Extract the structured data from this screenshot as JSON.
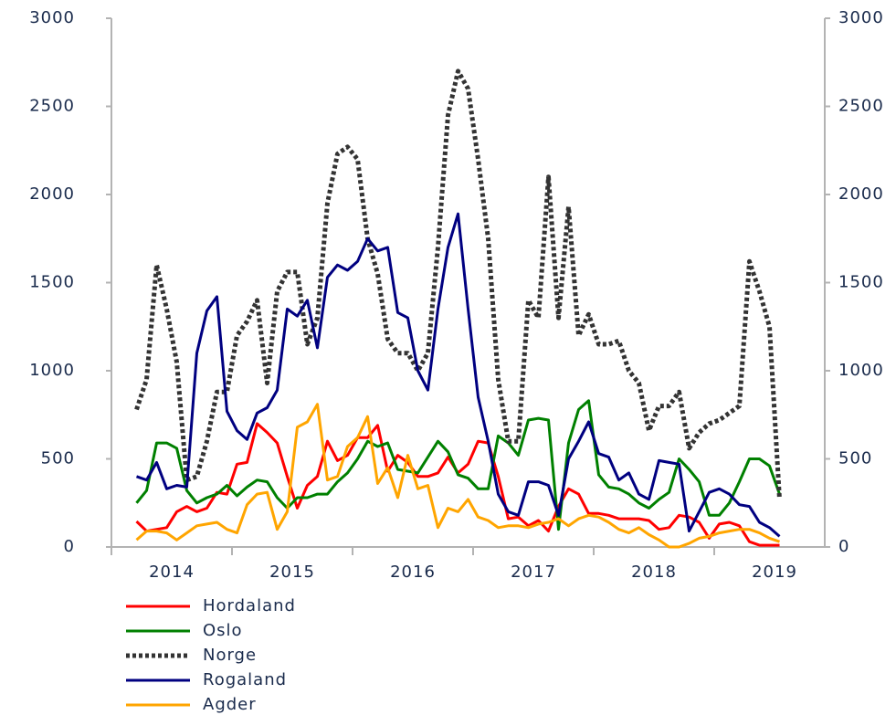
{
  "chart_data": {
    "type": "line",
    "categories": [
      null,
      null,
      null,
      null,
      "2014",
      null,
      null,
      null,
      null,
      null,
      null,
      null,
      null,
      null,
      null,
      null,
      "2015",
      null,
      null,
      null,
      null,
      null,
      null,
      null,
      null,
      null,
      null,
      null,
      "2016",
      null,
      null,
      null,
      null,
      null,
      null,
      null,
      null,
      null,
      null,
      null,
      "2017",
      null,
      null,
      null,
      null,
      null,
      null,
      null,
      null,
      null,
      null,
      null,
      "2018",
      null,
      null,
      null,
      null,
      null,
      null,
      null,
      null,
      null,
      null,
      null,
      "2019"
    ],
    "series": [
      {
        "name": "Hordaland",
        "color": "#ff0000",
        "style": "solid",
        "values": [
          145,
          90,
          100,
          110,
          200,
          230,
          200,
          220,
          310,
          300,
          470,
          480,
          700,
          650,
          590,
          400,
          220,
          350,
          400,
          600,
          490,
          520,
          620,
          620,
          690,
          430,
          520,
          480,
          400,
          400,
          420,
          510,
          420,
          470,
          600,
          590,
          400,
          160,
          170,
          120,
          150,
          90,
          230,
          330,
          300,
          190,
          190,
          180,
          160,
          160,
          160,
          150,
          100,
          110,
          180,
          170,
          140,
          50,
          130,
          140,
          120,
          30,
          10,
          10,
          10
        ]
      },
      {
        "name": "Oslo",
        "color": "#008000",
        "style": "solid",
        "values": [
          250,
          320,
          590,
          590,
          560,
          320,
          250,
          280,
          300,
          350,
          290,
          340,
          380,
          370,
          280,
          220,
          280,
          280,
          300,
          300,
          370,
          420,
          500,
          600,
          570,
          590,
          440,
          430,
          420,
          510,
          600,
          540,
          410,
          390,
          330,
          330,
          630,
          590,
          520,
          720,
          730,
          720,
          100,
          590,
          780,
          830,
          410,
          340,
          330,
          300,
          250,
          220,
          270,
          310,
          500,
          440,
          370,
          180,
          180,
          250,
          370,
          500,
          500,
          460,
          300
        ]
      },
      {
        "name": "Norge",
        "color": "#333333",
        "style": "dotted",
        "values": [
          780,
          950,
          1600,
          1350,
          1050,
          380,
          400,
          600,
          880,
          880,
          1200,
          1280,
          1400,
          930,
          1450,
          1560,
          1560,
          1150,
          1300,
          1950,
          2230,
          2270,
          2200,
          1750,
          1550,
          1180,
          1100,
          1100,
          1000,
          1100,
          1700,
          2450,
          2700,
          2600,
          2200,
          1750,
          950,
          600,
          600,
          1400,
          1300,
          2100,
          1300,
          1930,
          1200,
          1320,
          1150,
          1150,
          1170,
          1000,
          930,
          660,
          800,
          800,
          880,
          560,
          650,
          700,
          720,
          760,
          800,
          1620,
          1450,
          1250,
          270
        ]
      },
      {
        "name": "Rogaland",
        "color": "#000080",
        "style": "solid",
        "values": [
          400,
          380,
          480,
          330,
          350,
          340,
          1100,
          1340,
          1420,
          770,
          660,
          610,
          760,
          790,
          890,
          1350,
          1310,
          1400,
          1130,
          1530,
          1600,
          1570,
          1620,
          1750,
          1680,
          1700,
          1330,
          1300,
          1000,
          890,
          1350,
          1700,
          1890,
          1350,
          850,
          600,
          300,
          200,
          180,
          370,
          370,
          350,
          180,
          500,
          600,
          710,
          530,
          510,
          380,
          420,
          300,
          270,
          490,
          480,
          470,
          90,
          200,
          310,
          330,
          300,
          240,
          230,
          140,
          110,
          60
        ]
      },
      {
        "name": "Agder",
        "color": "#ffa500",
        "style": "solid",
        "values": [
          40,
          90,
          90,
          80,
          40,
          80,
          120,
          130,
          140,
          100,
          80,
          240,
          300,
          310,
          100,
          200,
          680,
          710,
          810,
          380,
          400,
          570,
          620,
          740,
          360,
          450,
          280,
          520,
          330,
          350,
          110,
          220,
          200,
          270,
          170,
          150,
          110,
          120,
          120,
          110,
          130,
          140,
          160,
          120,
          160,
          180,
          170,
          140,
          100,
          80,
          110,
          70,
          40,
          0,
          0,
          20,
          50,
          60,
          80,
          90,
          100,
          100,
          80,
          50,
          30
        ]
      }
    ],
    "ylim": [
      0,
      3000
    ],
    "yticks": [
      0,
      500,
      1000,
      1500,
      2000,
      2500,
      3000
    ],
    "y2lim": [
      0,
      3000
    ],
    "y2ticks": [
      0,
      500,
      1000,
      1500,
      2000,
      2500,
      3000
    ]
  }
}
